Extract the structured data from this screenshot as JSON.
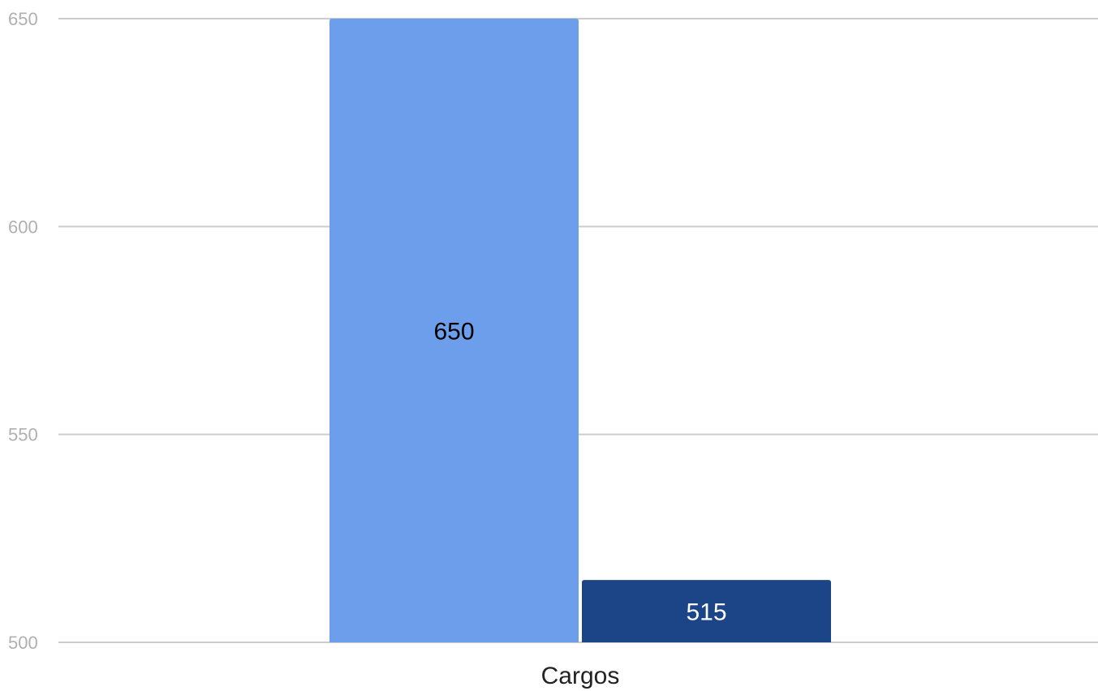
{
  "chart_data": {
    "type": "bar",
    "categories": [
      "Cargos"
    ],
    "series": [
      {
        "values": [
          650
        ],
        "color": "#6d9eeb",
        "label_color": "#000000"
      },
      {
        "values": [
          515
        ],
        "color": "#1c4587",
        "label_color": "#ffffff"
      }
    ],
    "ylim": [
      500,
      650
    ],
    "yticks": [
      "500",
      "550",
      "600",
      "650"
    ],
    "grid": true,
    "data_labels": true
  }
}
